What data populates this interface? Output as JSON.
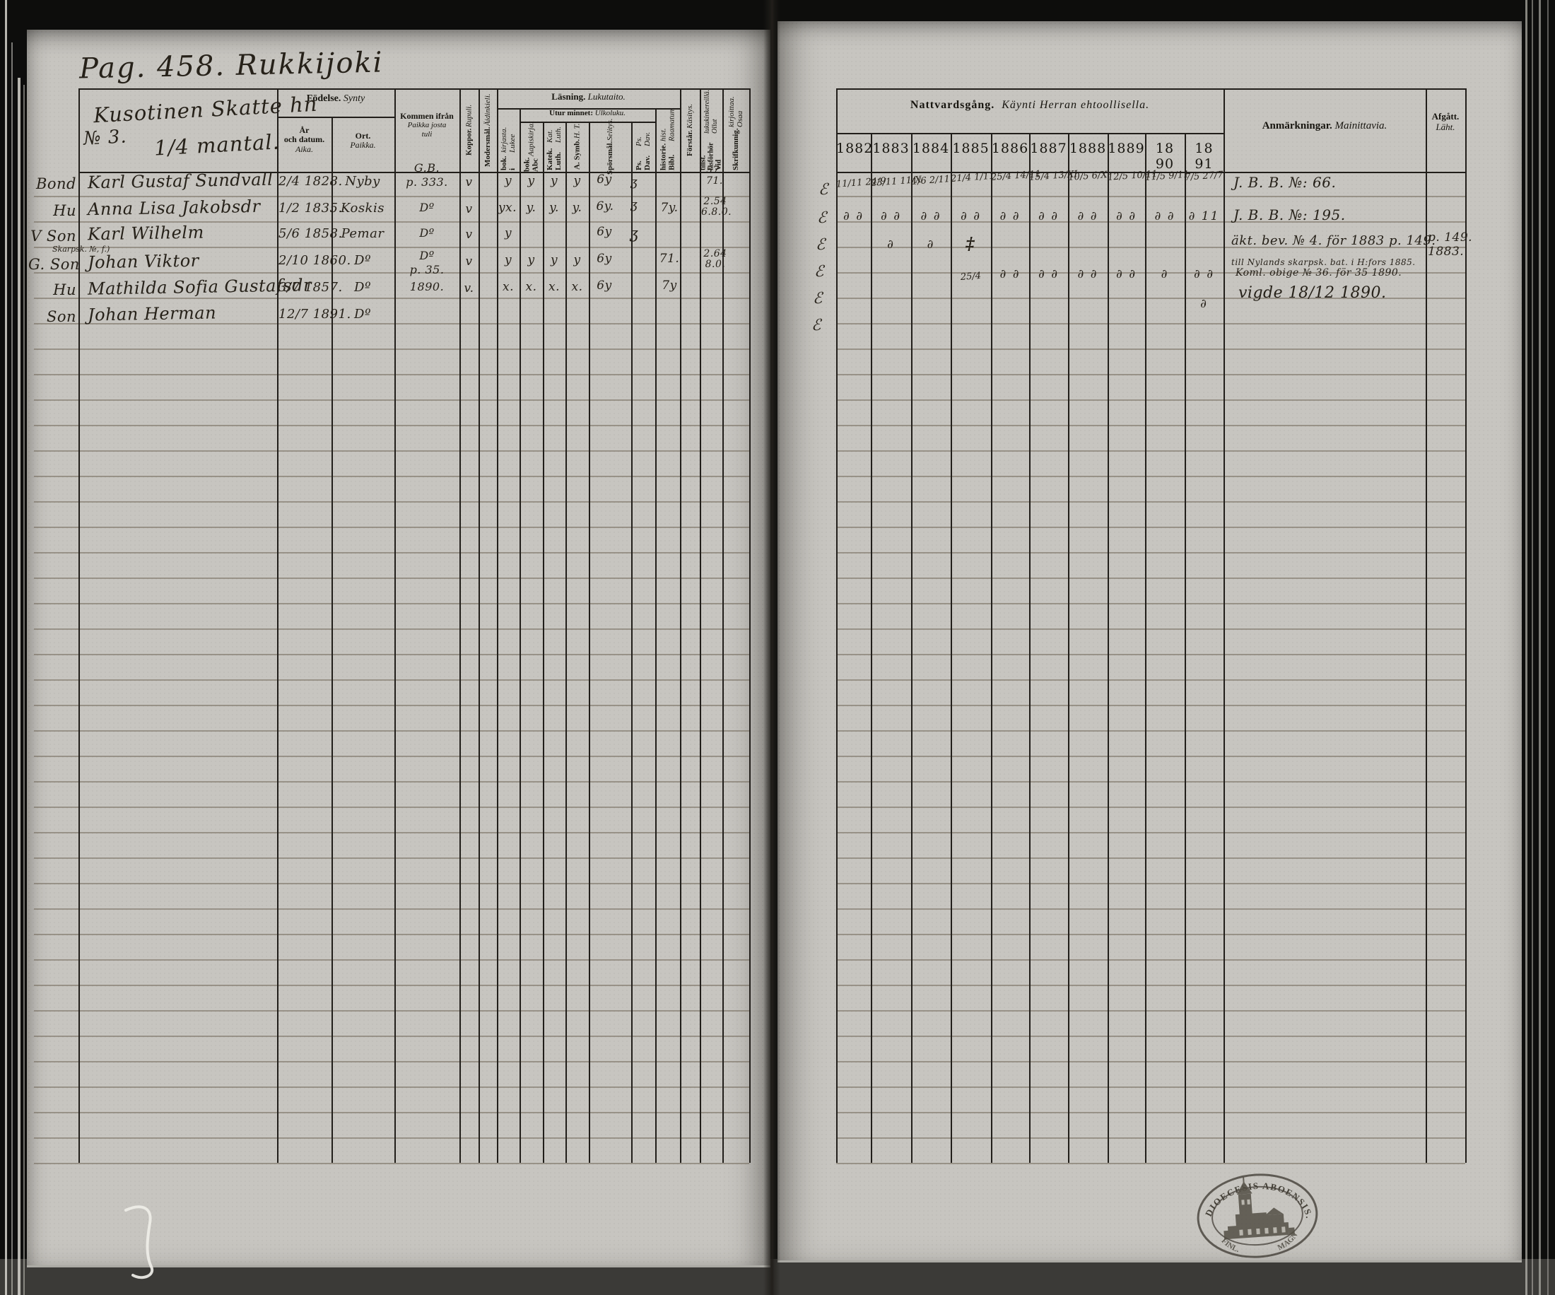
{
  "book": {
    "page_title": "Pag. 458. Rukkijoki",
    "farm_line1": "Kusotinen Skatte hn",
    "farm_line2": "№ 3.",
    "farm_line3": "1/4 mantal."
  },
  "left": {
    "headers": {
      "fodelse_sv": "Födelse.",
      "fodelse_fi": "Synty",
      "ar_sv1": "År",
      "ar_sv2": "och datum.",
      "ar_fi": "Aika.",
      "ort_sv": "Ort.",
      "ort_fi": "Paikka.",
      "kommen_sv": "Kommen ifrån",
      "kommen_fi1": "Paikka josta",
      "kommen_fi2": "tuli",
      "lasning_sv": "Läsning.",
      "lasning_fi": "Lukutaito.",
      "utur_sv": "Utur minnet:",
      "utur_fi": "Ulkoluku.",
      "koppor_sv": "Koppor.",
      "koppor_fi": "Rupuli.",
      "modersmal_sv": "Modersmål.",
      "modersmal_fi": "Äidinkieli.",
      "ibok_sv": "i bok.",
      "ibok_fi": "Lukee kirjasta.",
      "abc_sv": "Abc bok.",
      "abc_fi": "Aapiskirja.",
      "luth_sv": "Luth. Katek.",
      "luth_fi": "Luth. Kat.",
      "asymb_sv": "A. Symb.",
      "asymb_fi": "H. T.",
      "spors_sv": "Spörsmål.",
      "spors_fi": "Selitys.",
      "davps_sv": "Dav. Ps.",
      "davps_fi": "Dav. Ps.",
      "bibl_sv": "Bibl. historie.",
      "bibl_fi": "Raamatun hist.",
      "forstar_sv": "Förstår.",
      "forstar_fi": "Käsitys.",
      "forhor_sv": "Vid läsförhör tillst.",
      "forhor_fi": "Ollut lukukinkereillä.",
      "skrif_sv": "Skrifkunnig.",
      "skrif_fi": "Osaa kirjoittaa."
    },
    "rows": [
      {
        "rel": "Bond",
        "name": "Karl Gustaf Sundvall",
        "born": "2/4 1828.",
        "ort": "Nyby",
        "from1": "G.B.",
        "from2": "p. 333.",
        "koppor": "v",
        "ibok": "y",
        "abc": "y",
        "luth": "y",
        "asymb": "y",
        "spors": "6y",
        "davps": "ʒ",
        "bibl": "",
        "forhor": "57. 71."
      },
      {
        "rel": "Hu",
        "name": "Anna Lisa Jakobsdr",
        "born": "1/2 1835.",
        "ort": "Koskis",
        "from1": "Dº",
        "from2": "",
        "koppor": "v",
        "ibok": "yx.",
        "abc": "y.",
        "luth": "y.",
        "asymb": "y.",
        "spors": "6y.",
        "davps": "ʒ",
        "bibl": "7y.",
        "forhor": "2.54 6.8.0."
      },
      {
        "rel": "V Son",
        "name": "Karl Wilhelm",
        "born": "5/6 1858.",
        "ort": "Pemar",
        "from1": "Dº",
        "from2": "",
        "koppor": "v",
        "ibok": "y",
        "abc": "",
        "luth": "",
        "asymb": "",
        "spors": "6y",
        "davps": "ʒ",
        "bibl": "",
        "forhor": ""
      },
      {
        "rel": "G. Son",
        "note": "Skarpsk. №, f.)",
        "name": "Johan Viktor",
        "born": "2/10 1860.",
        "ort": "Dº",
        "from1": "Dº",
        "from2": "p. 35.",
        "koppor": "v",
        "ibok": "y",
        "abc": "y",
        "luth": "y",
        "asymb": "y",
        "spors": "6y",
        "davps": "",
        "bibl": "71.",
        "forhor": "2.64 8.0."
      },
      {
        "rel": "Hu",
        "name": "Mathilda Sofia Gustafsdr",
        "born": "3/7 1857.",
        "ort": "Dº",
        "from1": "1890.",
        "from2": "",
        "koppor": "v.",
        "ibok": "x.",
        "abc": "x.",
        "luth": "x.",
        "asymb": "x.",
        "spors": "6y",
        "davps": "",
        "bibl": "7y",
        "forhor": ""
      },
      {
        "rel": "Son",
        "name": "Johan Herman",
        "born": "12/7 1891.",
        "ort": "Dº",
        "from1": "",
        "from2": "",
        "koppor": "",
        "ibok": "",
        "abc": "",
        "luth": "",
        "asymb": "",
        "spors": "",
        "davps": "",
        "bibl": "",
        "forhor": ""
      }
    ]
  },
  "right": {
    "natt_sv": "Nattvardsgång.",
    "natt_fi": "Käynti Herran ehtoollisella.",
    "years": [
      "1882",
      "1883",
      "1884",
      "1885",
      "1886",
      "1887",
      "1888",
      "1889",
      "18 90",
      "18 91"
    ],
    "anm_sv": "Anmärkningar.",
    "anm_fi": "Mainittavia.",
    "afgatt_sv": "Afgått.",
    "afgatt_fi": "Läht.",
    "margin_marks": [
      "ℰ",
      "ℰ",
      "ℰ",
      "ℰ",
      "ℰ",
      "ℰ"
    ],
    "comm1": [
      "11/11 24/9",
      "23/11 11/X",
      "1/6 2/11",
      "21/4 1/11",
      "25/4 14/11",
      "15/4 13/XI",
      "10/5 6/X",
      "12/5 10/11",
      "11/5 9/11",
      "7/5 27/7"
    ],
    "comm2": [
      "∂ ∂",
      "∂ ∂",
      "∂ ∂",
      "∂ ∂",
      "∂ ∂",
      "∂ ∂",
      "∂ ∂",
      "∂ ∂",
      "∂ ∂",
      "∂ 11"
    ],
    "comm3": [
      "",
      "∂",
      "∂",
      "‡",
      "",
      "",
      "",
      "",
      "",
      ""
    ],
    "comm4": [
      "",
      "",
      "",
      "25/4",
      "∂ ∂",
      "∂ ∂",
      "∂ ∂",
      "∂ ∂",
      "∂",
      "∂ ∂"
    ],
    "comm5": [
      "",
      "",
      "",
      "",
      "",
      "",
      "",
      "",
      "",
      "∂"
    ],
    "remarks": {
      "r1": "J. B. B. №: 66.",
      "r2": "J. B. B. №: 195.",
      "r3": "äkt. bev. № 4. för 1883 p. 149.",
      "r4a": "till Nylands skarpsk. bat. i H:fors 1885.",
      "r4b": "Koml. obige № 36. för 35 1890.",
      "r5": "vigde 18/12 1890."
    },
    "afgatt_entry1": "p. 149.",
    "afgatt_entry2": "1883."
  },
  "stamp": {
    "arc_top": "DIOECESIS ABOENSIS.",
    "frag_left": "FINL.",
    "frag_right": "MAGN"
  }
}
